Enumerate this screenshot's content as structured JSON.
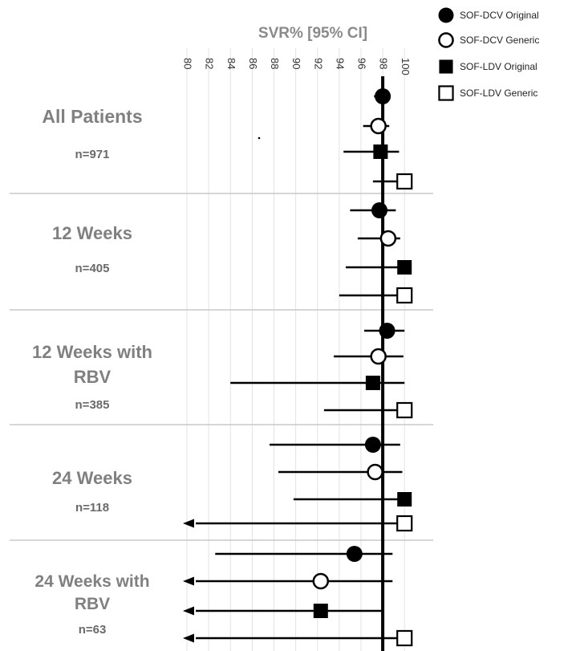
{
  "chart_data": {
    "type": "forest",
    "title": "SVR% [95% CI]",
    "x_ticks": [
      "80",
      "82",
      "84",
      "86",
      "88",
      "90",
      "92",
      "94",
      "96",
      "98",
      "100"
    ],
    "xlim": [
      80,
      100.5
    ],
    "reference_line": 98,
    "legend": [
      {
        "name": "SOF-DCV Original",
        "marker": "filled-circle"
      },
      {
        "name": "SOF-DCV Generic",
        "marker": "open-circle"
      },
      {
        "name": "SOF-LDV Original",
        "marker": "filled-square"
      },
      {
        "name": "SOF-LDV Generic",
        "marker": "open-square"
      }
    ],
    "groups": [
      {
        "label_lines": [
          "All Patients"
        ],
        "n": "n=971",
        "rows": [
          {
            "series": "SOF-DCV Original",
            "value": 98.0,
            "lo": 97.2,
            "hi": 98.7,
            "arrow": false
          },
          {
            "series": "SOF-DCV Generic",
            "value": 97.6,
            "lo": 96.2,
            "hi": 98.6,
            "arrow": false
          },
          {
            "series": "SOF-LDV Original",
            "value": 97.8,
            "lo": 94.4,
            "hi": 99.5,
            "arrow": false
          },
          {
            "series": "SOF-LDV Generic",
            "value": 100,
            "lo": 97.1,
            "hi": 100,
            "arrow": false
          }
        ]
      },
      {
        "label_lines": [
          "12 Weeks"
        ],
        "n": "n=405",
        "rows": [
          {
            "series": "SOF-DCV Original",
            "value": 97.7,
            "lo": 95.0,
            "hi": 99.2,
            "arrow": false
          },
          {
            "series": "SOF-DCV Generic",
            "value": 98.5,
            "lo": 95.7,
            "hi": 99.6,
            "arrow": false
          },
          {
            "series": "SOF-LDV Original",
            "value": 100,
            "lo": 94.6,
            "hi": 100,
            "arrow": false
          },
          {
            "series": "SOF-LDV Generic",
            "value": 100,
            "lo": 94.0,
            "hi": 100,
            "arrow": false
          }
        ]
      },
      {
        "label_lines": [
          "12 Weeks with",
          "RBV"
        ],
        "n": "n=385",
        "rows": [
          {
            "series": "SOF-DCV Original",
            "value": 98.4,
            "lo": 96.3,
            "hi": 100,
            "arrow": false
          },
          {
            "series": "SOF-DCV Generic",
            "value": 97.6,
            "lo": 93.5,
            "hi": 99.9,
            "arrow": false
          },
          {
            "series": "SOF-LDV Original",
            "value": 97.1,
            "lo": 84.0,
            "hi": 100,
            "arrow": false
          },
          {
            "series": "SOF-LDV Generic",
            "value": 100,
            "lo": 92.6,
            "hi": 100,
            "arrow": false
          }
        ]
      },
      {
        "label_lines": [
          "24 Weeks"
        ],
        "n": "n=118",
        "rows": [
          {
            "series": "SOF-DCV Original",
            "value": 97.1,
            "lo": 87.6,
            "hi": 99.6,
            "arrow": false
          },
          {
            "series": "SOF-DCV Generic",
            "value": 97.3,
            "lo": 88.4,
            "hi": 99.8,
            "arrow": false
          },
          {
            "series": "SOF-LDV Original",
            "value": 100,
            "lo": 89.8,
            "hi": 100,
            "arrow": false
          },
          {
            "series": "SOF-LDV Generic",
            "value": 100,
            "lo": 80,
            "hi": 100,
            "arrow": true
          }
        ]
      },
      {
        "label_lines": [
          "24 Weeks with",
          "RBV"
        ],
        "n": "n=63",
        "rows": [
          {
            "series": "SOF-DCV Original",
            "value": 95.4,
            "lo": 82.6,
            "hi": 98.9,
            "arrow": false
          },
          {
            "series": "SOF-DCV Generic",
            "value": 92.3,
            "lo": 80,
            "hi": 98.9,
            "arrow": true
          },
          {
            "series": "SOF-LDV Original",
            "value": 92.3,
            "lo": 80,
            "hi": 98.0,
            "arrow": true
          },
          {
            "series": "SOF-LDV Generic",
            "value": 100,
            "lo": 80,
            "hi": 100,
            "arrow": true
          }
        ]
      }
    ],
    "grid": "vertical",
    "legend_position": "top-right"
  }
}
